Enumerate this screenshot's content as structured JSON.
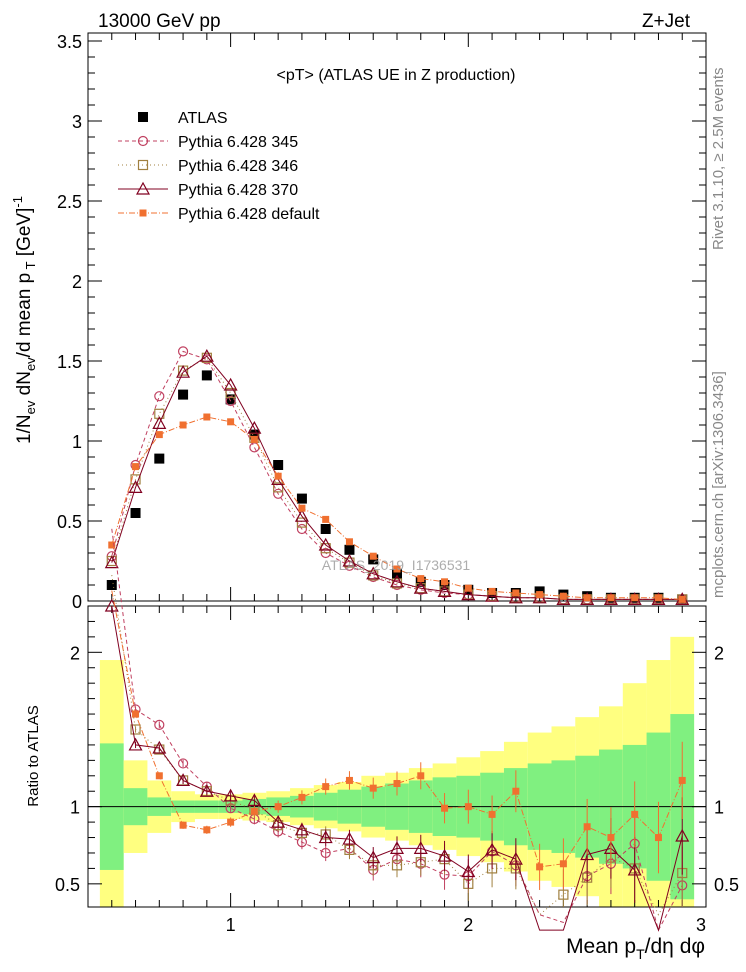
{
  "header": {
    "left": "13000 GeV pp",
    "right": "Z+Jet"
  },
  "chart_data": {
    "type": "scatter",
    "title": "<pT> (ATLAS UE in Z production)",
    "ylabel_main_parts": [
      "1/N",
      "ev",
      " dN",
      "ev",
      "/d mean p",
      " T",
      " [GeV]",
      "-1"
    ],
    "ylabel_ratio": "Ratio to ATLAS",
    "xlabel_parts": [
      "Mean p",
      "T",
      "/dη dφ"
    ],
    "side_text_top": "Rivet 3.1.10, ≥ 2.5M events",
    "side_text_bottom": "mcplots.cern.ch [arXiv:1306.3436]",
    "watermark": "ATLAS_2019_I1736531",
    "xlim": [
      0.4,
      3.0
    ],
    "ylim_main": [
      0,
      3.55
    ],
    "ylim_ratio": [
      0.35,
      2.3
    ],
    "x_ticks": [
      "1",
      "2",
      "3"
    ],
    "y_ticks_main": [
      "0",
      "0.5",
      "1",
      "1.5",
      "2",
      "2.5",
      "3",
      "3.5"
    ],
    "y_ticks_ratio": [
      "0.5",
      "1",
      "2"
    ],
    "x": [
      0.5,
      0.6,
      0.7,
      0.8,
      0.9,
      1.0,
      1.1,
      1.2,
      1.3,
      1.4,
      1.5,
      1.6,
      1.7,
      1.8,
      1.9,
      2.0,
      2.1,
      2.2,
      2.3,
      2.4,
      2.5,
      2.6,
      2.7,
      2.8,
      2.9
    ],
    "series": [
      {
        "name": "ATLAS",
        "color": "#000000",
        "marker": "filled-square",
        "values": [
          0.1,
          0.55,
          0.89,
          1.29,
          1.41,
          1.26,
          1.04,
          0.85,
          0.64,
          0.45,
          0.32,
          0.26,
          0.17,
          0.12,
          0.1,
          0.07,
          0.05,
          0.05,
          0.06,
          0.04,
          0.03,
          0.02,
          0.02,
          0.02,
          0.01
        ]
      },
      {
        "name": "Pythia 6.428 345",
        "color": "#c04060",
        "marker": "open-circle",
        "dash": "4,3",
        "values": [
          0.28,
          0.85,
          1.28,
          1.56,
          1.51,
          1.25,
          0.96,
          0.67,
          0.45,
          0.3,
          0.22,
          0.15,
          0.1,
          0.07,
          0.05,
          0.04,
          0.03,
          0.02,
          0.02,
          0.01,
          0.01,
          0.01,
          0.01,
          0.01,
          0.01
        ],
        "ratio": [
          2.8,
          1.63,
          1.53,
          1.28,
          1.13,
          0.99,
          0.92,
          0.84,
          0.77,
          0.7,
          0.73,
          0.59,
          0.66,
          0.63,
          0.56,
          0.55,
          0.71,
          0.62,
          0.3,
          0.25,
          0.55,
          0.63,
          0.76,
          0.2,
          0.49
        ]
      },
      {
        "name": "Pythia 6.428 346",
        "color": "#a08040",
        "marker": "open-square",
        "dash": "1,3",
        "values": [
          0.25,
          0.76,
          1.17,
          1.44,
          1.52,
          1.3,
          1.02,
          0.71,
          0.49,
          0.33,
          0.24,
          0.16,
          0.11,
          0.08,
          0.06,
          0.04,
          0.03,
          0.02,
          0.02,
          0.01,
          0.01,
          0.01,
          0.01,
          0.01,
          0.01
        ],
        "ratio": [
          2.5,
          1.5,
          1.37,
          1.17,
          1.1,
          1.04,
          0.98,
          0.88,
          0.83,
          0.82,
          0.72,
          0.62,
          0.62,
          0.64,
          0.66,
          0.5,
          0.6,
          0.6,
          0.3,
          0.43,
          0.54,
          0.67,
          0.6,
          0.3,
          0.57
        ]
      },
      {
        "name": "Pythia 6.428 370",
        "color": "#800020",
        "marker": "open-triangle",
        "dash": "",
        "values": [
          0.24,
          0.71,
          1.11,
          1.43,
          1.53,
          1.35,
          1.08,
          0.76,
          0.53,
          0.35,
          0.25,
          0.17,
          0.12,
          0.08,
          0.06,
          0.04,
          0.03,
          0.02,
          0.02,
          0.01,
          0.01,
          0.01,
          0.01,
          0.01,
          0.01
        ],
        "ratio": [
          2.3,
          1.4,
          1.38,
          1.17,
          1.1,
          1.07,
          1.04,
          0.9,
          0.85,
          0.8,
          0.79,
          0.67,
          0.73,
          0.73,
          0.68,
          0.58,
          0.72,
          0.66,
          0.2,
          0.2,
          0.69,
          0.73,
          0.59,
          0.2,
          0.81
        ]
      },
      {
        "name": "Pythia 6.428 default",
        "color": "#f07030",
        "marker": "filled-square-small",
        "dash": "6,2,1,2",
        "values": [
          0.35,
          0.84,
          1.04,
          1.1,
          1.15,
          1.12,
          1.01,
          0.78,
          0.58,
          0.51,
          0.37,
          0.28,
          0.2,
          0.14,
          0.12,
          0.08,
          0.06,
          0.05,
          0.04,
          0.03,
          0.02,
          0.02,
          0.02,
          0.02,
          0.01
        ],
        "ratio": [
          2.4,
          1.6,
          1.2,
          0.88,
          0.85,
          0.9,
          0.97,
          1.0,
          1.06,
          1.13,
          1.17,
          1.12,
          1.15,
          1.2,
          0.99,
          1.0,
          0.95,
          1.1,
          0.61,
          0.63,
          0.87,
          0.8,
          0.95,
          0.8,
          1.17
        ]
      }
    ],
    "band_stat": [
      0.41,
      0.12,
      0.06,
      0.04,
      0.04,
      0.04,
      0.05,
      0.06,
      0.07,
      0.09,
      0.11,
      0.13,
      0.15,
      0.17,
      0.19,
      0.2,
      0.22,
      0.25,
      0.28,
      0.3,
      0.33,
      0.37,
      0.4,
      0.48,
      0.6
    ],
    "band_total": [
      0.95,
      0.3,
      0.17,
      0.1,
      0.08,
      0.08,
      0.09,
      0.1,
      0.12,
      0.14,
      0.16,
      0.2,
      0.22,
      0.25,
      0.28,
      0.32,
      0.36,
      0.42,
      0.48,
      0.52,
      0.58,
      0.65,
      0.8,
      0.95,
      1.1
    ]
  }
}
